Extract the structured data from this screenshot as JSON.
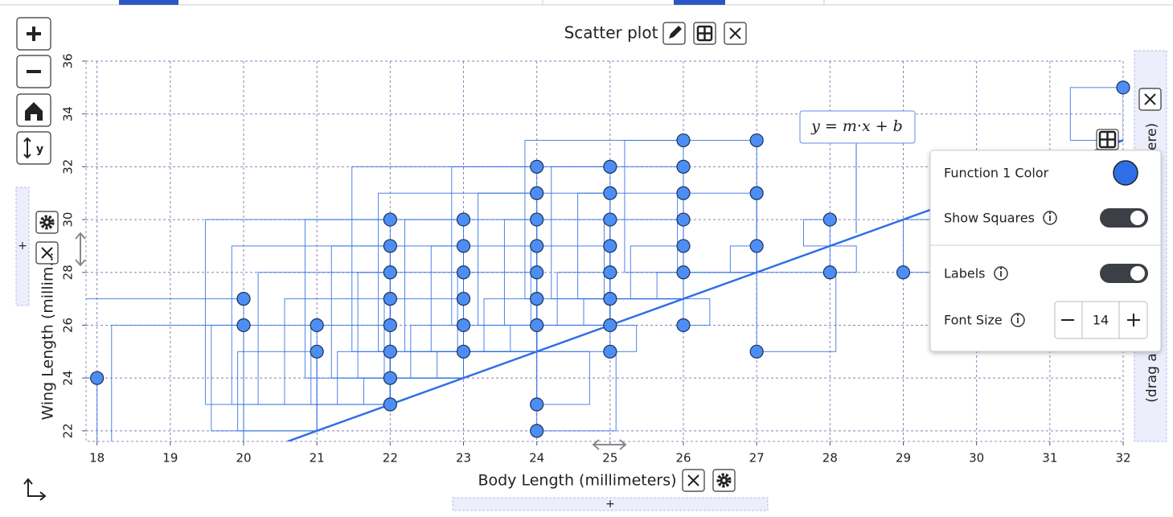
{
  "chart_data": {
    "type": "scatter",
    "title": "Scatter plot",
    "x_label": "Body Length (millimeters)",
    "y_label": "Wing Length (millim...",
    "x": [
      18,
      20,
      20,
      21,
      21,
      22,
      22,
      22,
      22,
      22,
      22,
      22,
      22,
      23,
      23,
      23,
      23,
      23,
      23,
      24,
      24,
      24,
      24,
      24,
      24,
      24,
      24,
      24,
      25,
      25,
      25,
      25,
      25,
      25,
      25,
      25,
      26,
      26,
      26,
      26,
      26,
      26,
      26,
      27,
      27,
      27,
      27,
      28,
      28,
      29,
      32
    ],
    "y": [
      24,
      27,
      26,
      26,
      25,
      30,
      29,
      28,
      27,
      26,
      25,
      24,
      23,
      30,
      29,
      28,
      27,
      26,
      25,
      32,
      31,
      30,
      29,
      28,
      27,
      26,
      23,
      22,
      32,
      31,
      30,
      29,
      28,
      27,
      26,
      25,
      33,
      32,
      31,
      30,
      29,
      28,
      26,
      33,
      31,
      29,
      25,
      30,
      28,
      28,
      35
    ],
    "color": "#4d8ef5",
    "fit_line": {
      "slope": 1,
      "intercept": 1
    },
    "xlim": [
      17.85,
      32
    ],
    "ylim": [
      21.6,
      36
    ],
    "xticks": [
      18,
      19,
      20,
      21,
      22,
      23,
      24,
      25,
      26,
      27,
      28,
      29,
      30,
      31,
      32
    ],
    "yticks": [
      22,
      24,
      26,
      28,
      30,
      32,
      34,
      36
    ],
    "grid": true
  },
  "ui": {
    "function_color_label": "Function 1 Color",
    "function_color": "#2f6fe6",
    "show_squares_label": "Show Squares",
    "show_squares": true,
    "labels_label": "Labels",
    "labels": true,
    "font_size_label": "Font Size",
    "font_size": 14,
    "equation": "y = m·x + b",
    "drop_hint_top": "ere)",
    "drop_hint_bottom": "(drag a",
    "drop_plus": "+",
    "axis_button_label": "y"
  }
}
